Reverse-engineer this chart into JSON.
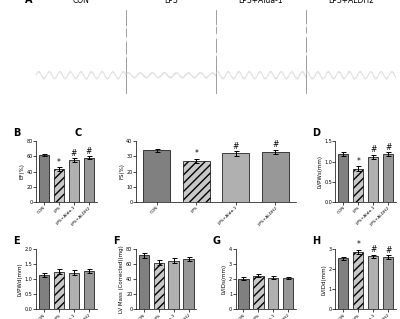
{
  "groups": [
    "CON",
    "LPS",
    "LPS+Alda-1",
    "LPS+ALDH2"
  ],
  "panels": {
    "B": {
      "label": "B",
      "ylabel": "EF(%)",
      "ylim": [
        0,
        80
      ],
      "yticks": [
        0,
        20,
        40,
        60,
        80
      ],
      "values": [
        62,
        43,
        55,
        58
      ],
      "errors": [
        1.5,
        2.5,
        2.5,
        2.0
      ],
      "sig_con": [
        false,
        true,
        false,
        false
      ],
      "sig_lps": [
        false,
        false,
        true,
        true
      ]
    },
    "C": {
      "label": "C",
      "ylabel": "FS(%)",
      "ylim": [
        0,
        40
      ],
      "yticks": [
        0,
        10,
        20,
        30,
        40
      ],
      "values": [
        34,
        27,
        32,
        33
      ],
      "errors": [
        1.0,
        1.5,
        1.5,
        1.5
      ],
      "sig_con": [
        false,
        true,
        false,
        false
      ],
      "sig_lps": [
        false,
        false,
        true,
        true
      ]
    },
    "D": {
      "label": "D",
      "ylabel": "LVPWs(mm)",
      "ylim": [
        0.0,
        1.5
      ],
      "yticks": [
        0.0,
        0.5,
        1.0,
        1.5
      ],
      "values": [
        1.18,
        0.82,
        1.12,
        1.18
      ],
      "errors": [
        0.05,
        0.06,
        0.05,
        0.05
      ],
      "sig_con": [
        false,
        true,
        false,
        false
      ],
      "sig_lps": [
        false,
        false,
        true,
        true
      ]
    },
    "E": {
      "label": "E",
      "ylabel": "LVPWd(mm)",
      "ylim": [
        0.0,
        2.0
      ],
      "yticks": [
        0.0,
        0.5,
        1.0,
        1.5,
        2.0
      ],
      "values": [
        1.15,
        1.25,
        1.22,
        1.28
      ],
      "errors": [
        0.07,
        0.08,
        0.08,
        0.06
      ],
      "sig_con": [
        false,
        false,
        false,
        false
      ],
      "sig_lps": [
        false,
        false,
        false,
        false
      ]
    },
    "F": {
      "label": "F",
      "ylabel": "LV Mass (Corrected)(mg)",
      "ylim": [
        0,
        80
      ],
      "yticks": [
        0,
        20,
        40,
        60,
        80
      ],
      "values": [
        72,
        62,
        65,
        67
      ],
      "errors": [
        3.0,
        3.5,
        3.5,
        3.0
      ],
      "sig_con": [
        false,
        false,
        false,
        false
      ],
      "sig_lps": [
        false,
        false,
        false,
        false
      ]
    },
    "G": {
      "label": "G",
      "ylabel": "LVIDs(mm)",
      "ylim": [
        0,
        4
      ],
      "yticks": [
        0,
        1,
        2,
        3,
        4
      ],
      "values": [
        2.05,
        2.25,
        2.1,
        2.1
      ],
      "errors": [
        0.08,
        0.1,
        0.1,
        0.08
      ],
      "sig_con": [
        false,
        false,
        false,
        false
      ],
      "sig_lps": [
        false,
        false,
        false,
        false
      ]
    },
    "H": {
      "label": "H",
      "ylabel": "LVIDd(mm)",
      "ylim": [
        0,
        3
      ],
      "yticks": [
        0,
        1,
        2,
        3
      ],
      "values": [
        2.55,
        2.88,
        2.65,
        2.62
      ],
      "errors": [
        0.08,
        0.1,
        0.08,
        0.08
      ],
      "sig_con": [
        false,
        true,
        false,
        false
      ],
      "sig_lps": [
        false,
        false,
        true,
        true
      ]
    }
  },
  "colors_list": [
    "#808080",
    "#c8c8c8",
    "#b0b0b0",
    "#989898"
  ],
  "hatches": [
    "",
    "////",
    "",
    ""
  ],
  "ecg_label": "A",
  "ecg_groups": [
    "CON",
    "LPS",
    "LPS+Alda-1",
    "LPS+ALDH2"
  ],
  "background_color": "#ffffff",
  "figure_width": 4.0,
  "figure_height": 3.19,
  "dpi": 100
}
